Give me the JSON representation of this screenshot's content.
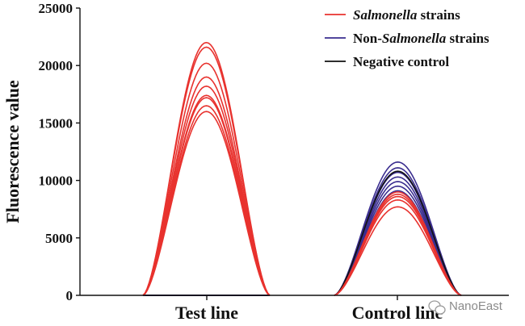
{
  "chart_data": {
    "type": "line",
    "ylabel": "Fluorescence value",
    "xlabel": "",
    "ylim": [
      0,
      25000
    ],
    "yticks": [
      0,
      5000,
      10000,
      15000,
      20000,
      25000
    ],
    "y_tick_labels": [
      "0",
      "5000",
      "10000",
      "15000",
      "20000",
      "25000"
    ],
    "categories": [
      "Test line",
      "Control line"
    ],
    "grid": false,
    "legend_position": "top-right",
    "legend": [
      {
        "pre": "",
        "italic": "Salmonella",
        "post": " strains",
        "color": "#e8322e"
      },
      {
        "pre": "Non-",
        "italic": "Salmonella",
        "post": " strains",
        "color": "#3a2d8f"
      },
      {
        "pre": "",
        "italic": "",
        "post": "Negative control",
        "color": "#111111"
      }
    ],
    "series": [
      {
        "group": "Salmonella strains",
        "color": "#e8322e",
        "test_line_peak": [
          22000,
          21600,
          20200,
          19000,
          18200,
          17400,
          17200,
          16500,
          16000
        ],
        "control_line_peak": [
          9000,
          8800,
          8600,
          8300,
          7700
        ]
      },
      {
        "group": "Non-Salmonella strains",
        "color": "#3a2d8f",
        "test_line_peak": [
          0,
          0,
          0,
          0,
          0
        ],
        "control_line_peak": [
          11600,
          11100,
          10700,
          10300,
          9900,
          9500,
          9100
        ]
      },
      {
        "group": "Negative control",
        "color": "#111111",
        "test_line_peak": [
          0
        ],
        "control_line_peak": [
          10800
        ]
      }
    ]
  },
  "watermark": "NanoEast"
}
